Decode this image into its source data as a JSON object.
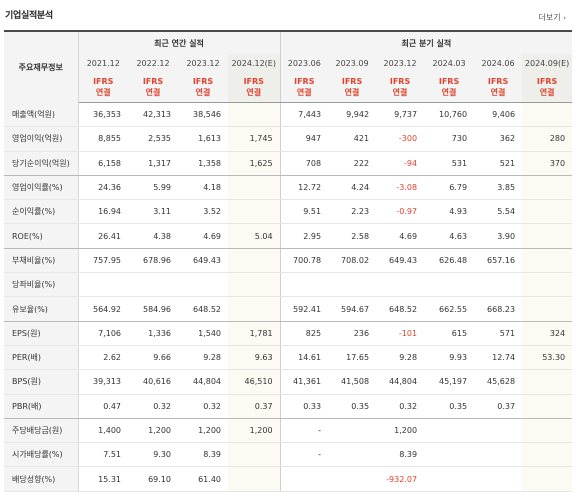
{
  "section_title": "기업실적분석",
  "more_label": "더보기",
  "more_arrow": "›",
  "item_header": "주요재무정보",
  "annual_header": "최근 연간 실적",
  "quarter_header": "최근 분기 실적",
  "periods": [
    "2021.12",
    "2022.12",
    "2023.12",
    "2024.12(E)",
    "2023.06",
    "2023.09",
    "2023.12",
    "2024.03",
    "2024.06",
    "2024.09(E)"
  ],
  "ifrs_line1": "IFRS",
  "ifrs_line2": "연결",
  "rows": [
    {
      "label": "매출액(억원)",
      "values": [
        "36,353",
        "42,313",
        "38,546",
        "",
        "7,443",
        "9,942",
        "9,737",
        "10,760",
        "9,406",
        ""
      ]
    },
    {
      "label": "영업이익(억원)",
      "values": [
        "8,855",
        "2,535",
        "1,613",
        "1,745",
        "947",
        "421",
        "-300",
        "730",
        "362",
        "280"
      ]
    },
    {
      "label": "당기순이익(억원)",
      "values": [
        "6,158",
        "1,317",
        "1,358",
        "1,625",
        "708",
        "222",
        "-94",
        "531",
        "521",
        "370"
      ]
    },
    {
      "label": "영업이익률(%)",
      "values": [
        "24.36",
        "5.99",
        "4.18",
        "",
        "12.72",
        "4.24",
        "-3.08",
        "6.79",
        "3.85",
        ""
      ]
    },
    {
      "label": "순이익률(%)",
      "values": [
        "16.94",
        "3.11",
        "3.52",
        "",
        "9.51",
        "2.23",
        "-0.97",
        "4.93",
        "5.54",
        ""
      ]
    },
    {
      "label": "ROE(%)",
      "values": [
        "26.41",
        "4.38",
        "4.69",
        "5.04",
        "2.95",
        "2.58",
        "4.69",
        "4.63",
        "3.90",
        ""
      ]
    },
    {
      "label": "부채비율(%)",
      "values": [
        "757.95",
        "678.96",
        "649.43",
        "",
        "700.78",
        "708.02",
        "649.43",
        "626.48",
        "657.16",
        ""
      ]
    },
    {
      "label": "당좌비율(%)",
      "values": [
        "",
        "",
        "",
        "",
        "",
        "",
        "",
        "",
        "",
        ""
      ]
    },
    {
      "label": "유보율(%)",
      "values": [
        "564.92",
        "584.96",
        "648.52",
        "",
        "592.41",
        "594.67",
        "648.52",
        "662.55",
        "668.23",
        ""
      ]
    },
    {
      "label": "EPS(원)",
      "values": [
        "7,106",
        "1,336",
        "1,540",
        "1,781",
        "825",
        "236",
        "-101",
        "615",
        "571",
        "324"
      ]
    },
    {
      "label": "PER(배)",
      "values": [
        "2.62",
        "9.66",
        "9.28",
        "9.63",
        "14.61",
        "17.65",
        "9.28",
        "9.93",
        "12.74",
        "53.30"
      ]
    },
    {
      "label": "BPS(원)",
      "values": [
        "39,313",
        "40,616",
        "44,804",
        "46,510",
        "41,361",
        "41,508",
        "44,804",
        "45,197",
        "45,628",
        ""
      ]
    },
    {
      "label": "PBR(배)",
      "values": [
        "0.47",
        "0.32",
        "0.32",
        "0.37",
        "0.33",
        "0.35",
        "0.32",
        "0.35",
        "0.37",
        ""
      ]
    },
    {
      "label": "주당배당금(원)",
      "values": [
        "1,400",
        "1,200",
        "1,200",
        "1,200",
        "-",
        "",
        "1,200",
        "",
        "",
        ""
      ]
    },
    {
      "label": "시가배당률(%)",
      "values": [
        "7.51",
        "9.30",
        "8.39",
        "",
        "-",
        "",
        "8.39",
        "",
        "",
        ""
      ]
    },
    {
      "label": "배당성향(%)",
      "values": [
        "15.31",
        "69.10",
        "61.40",
        "",
        "",
        "",
        "-932.07",
        "",
        "",
        ""
      ]
    }
  ],
  "colors": {
    "accent_red": "#e0432e",
    "header_bg": "#f4f4f4",
    "estimate_bg": "#fbfbf4",
    "top_rule": "#4b4b4b"
  }
}
